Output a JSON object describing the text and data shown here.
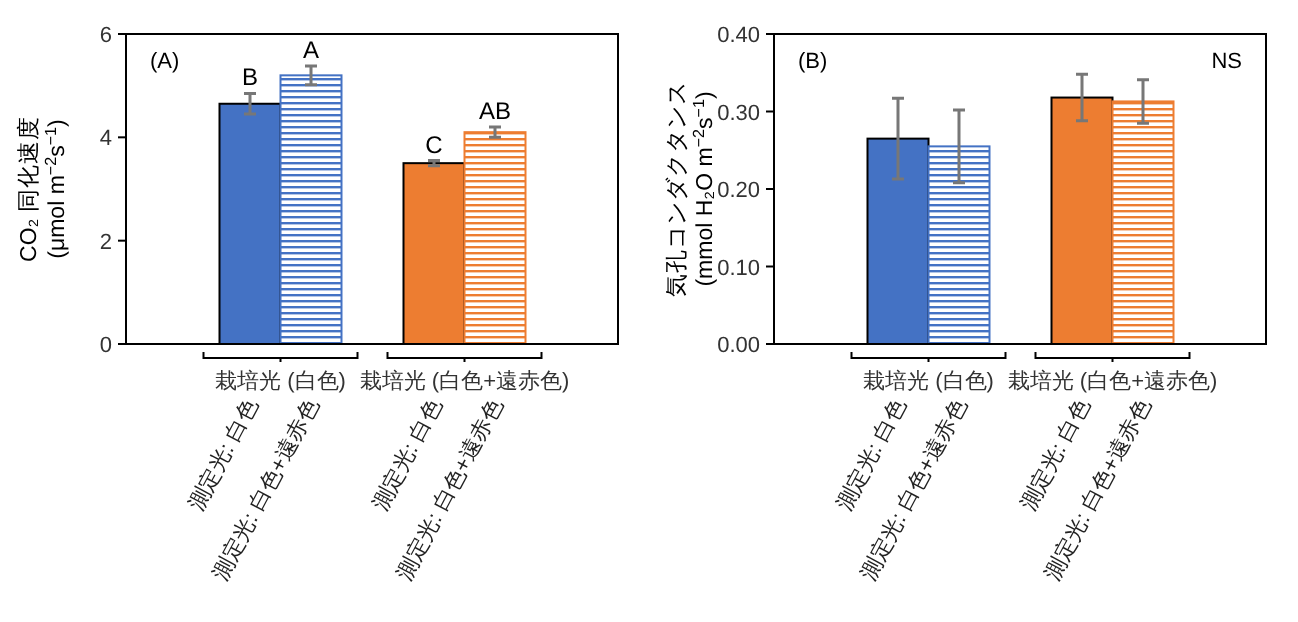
{
  "chart_data": [
    {
      "type": "bar",
      "ylabel": "CO₂ 同化速度\n(μmol m$^{−2}$s$^{−1}$)",
      "categories": [
        "測定光: 白色",
        "測定光: 白色+遠赤色",
        "測定光: 白色",
        "測定光: 白色+遠赤色"
      ],
      "values": [
        4.65,
        5.2,
        3.5,
        4.1
      ],
      "errors": [
        0.2,
        0.18,
        0.05,
        0.1
      ],
      "value_labels": [
        "B",
        "A",
        "C",
        "AB"
      ],
      "colors": [
        "#4472c4",
        "#4472c4",
        "#ed7d31",
        "#ed7d31"
      ],
      "ylim": [
        0,
        6
      ],
      "yticks": [
        0,
        2,
        4,
        6
      ],
      "annotations": [
        "(A)",
        "栽培光 (白色)",
        "栽培光 (白色+遠赤色)"
      ]
    },
    {
      "type": "bar",
      "ylabel": "気孔コンダクタンス\n(mmol H₂O m$^{−2}$s$^{−1}$)",
      "categories": [
        "測定光: 白色",
        "測定光: 白色+遠赤色",
        "測定光: 白色",
        "測定光: 白色+遠赤色"
      ],
      "values": [
        0.265,
        0.255,
        0.318,
        0.313
      ],
      "errors": [
        0.052,
        0.047,
        0.03,
        0.028
      ],
      "colors": [
        "#4472c4",
        "#4472c4",
        "#ed7d31",
        "#ed7d31"
      ],
      "ylim": [
        0,
        0.4
      ],
      "yticks": [
        {
          "value": 0,
          "label": "0.00"
        },
        {
          "value": 0.1,
          "label": "0.10"
        },
        {
          "value": 0.2,
          "label": "0.20"
        },
        {
          "value": 0.3,
          "label": "0.30"
        },
        {
          "value": 0.4,
          "label": "0.40"
        }
      ],
      "annotations": [
        "(B)",
        "NS",
        "栽培光 (白色)",
        "栽培光 (白色+遠赤色)"
      ]
    }
  ]
}
